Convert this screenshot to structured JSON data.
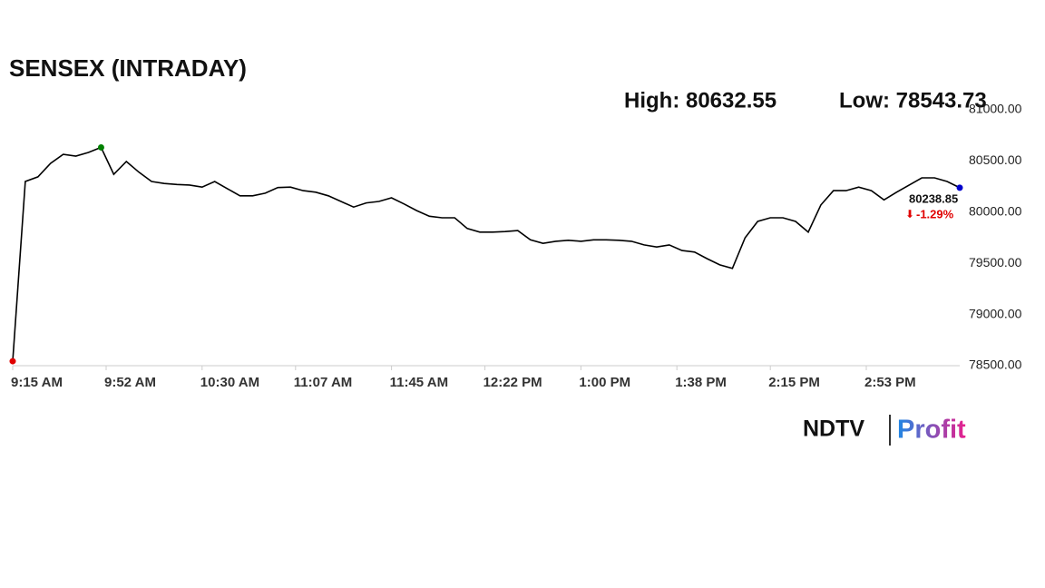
{
  "chart_data": {
    "type": "line",
    "title": "SENSEX (INTRADAY)",
    "high_text": "High: 80632.55",
    "low_text": "Low: 78543.73",
    "last_label": "80238.85",
    "change_label": "-1.29%",
    "brand": "NDTV",
    "brand_sub": "Profit",
    "x": [
      "9:15 AM",
      "9:20 AM",
      "9:25 AM",
      "9:30 AM",
      "9:35 AM",
      "9:40 AM",
      "9:45 AM",
      "9:50 AM",
      "9:55 AM",
      "10:00 AM",
      "10:05 AM",
      "10:10 AM",
      "10:15 AM",
      "10:20 AM",
      "10:25 AM",
      "10:30 AM",
      "10:35 AM",
      "10:40 AM",
      "10:45 AM",
      "10:50 AM",
      "10:55 AM",
      "11:00 AM",
      "11:05 AM",
      "11:10 AM",
      "11:15 AM",
      "11:20 AM",
      "11:25 AM",
      "11:30 AM",
      "11:35 AM",
      "11:40 AM",
      "11:45 AM",
      "11:50 AM",
      "11:55 AM",
      "12:00 PM",
      "12:05 PM",
      "12:10 PM",
      "12:15 PM",
      "12:20 PM",
      "12:25 PM",
      "12:30 PM",
      "12:35 PM",
      "12:40 PM",
      "12:45 PM",
      "12:50 PM",
      "12:55 PM",
      "1:00 PM",
      "1:05 PM",
      "1:10 PM",
      "1:15 PM",
      "1:20 PM",
      "1:25 PM",
      "1:30 PM",
      "1:35 PM",
      "1:40 PM",
      "1:45 PM",
      "1:50 PM",
      "1:55 PM",
      "2:00 PM",
      "2:05 PM",
      "2:10 PM",
      "2:15 PM",
      "2:20 PM",
      "2:25 PM",
      "2:30 PM",
      "2:35 PM",
      "2:40 PM",
      "2:45 PM",
      "2:50 PM",
      "2:55 PM",
      "3:00 PM",
      "3:05 PM",
      "3:10 PM",
      "3:15 PM",
      "3:20 PM",
      "3:25 PM",
      "3:30 PM"
    ],
    "series": [
      {
        "color": "#000000",
        "values": [
          78543.73,
          80300,
          80345,
          80477,
          80565,
          80548,
          80583,
          80632.55,
          80370,
          80495,
          80390,
          80300,
          80280,
          80270,
          80265,
          80245,
          80300,
          80230,
          80160,
          80160,
          80185,
          80240,
          80245,
          80210,
          80195,
          80160,
          80105,
          80050,
          80090,
          80105,
          80140,
          80080,
          80015,
          79960,
          79945,
          79945,
          79840,
          79805,
          79805,
          79810,
          79820,
          79730,
          79695,
          79715,
          79725,
          79715,
          79730,
          79730,
          79725,
          79715,
          79680,
          79660,
          79680,
          79625,
          79610,
          79545,
          79485,
          79450,
          79750,
          79910,
          79945,
          79945,
          79910,
          79805,
          80070,
          80210,
          80210,
          80245,
          80210,
          80120,
          80195,
          80265,
          80335,
          80335,
          80300,
          80238.85
        ]
      }
    ],
    "low_color": "#e00000",
    "high_color": "#008000",
    "last_color": "#0000cc",
    "change_color": "#e00000",
    "xticks": [
      "9:15 AM",
      "9:52 AM",
      "10:30 AM",
      "11:07 AM",
      "11:45 AM",
      "12:22 PM",
      "1:00 PM",
      "1:38 PM",
      "2:15 PM",
      "2:53 PM"
    ],
    "ylim": [
      78500,
      81000
    ],
    "yticks": [
      {
        "value": 78500,
        "label": "78500.00"
      },
      {
        "value": 79000,
        "label": "79000.00"
      },
      {
        "value": 79500,
        "label": "79500.00"
      },
      {
        "value": 80000,
        "label": "80000.00"
      },
      {
        "value": 80500,
        "label": "80500.00"
      },
      {
        "value": 81000,
        "label": "81000.00"
      }
    ],
    "grid": false
  }
}
